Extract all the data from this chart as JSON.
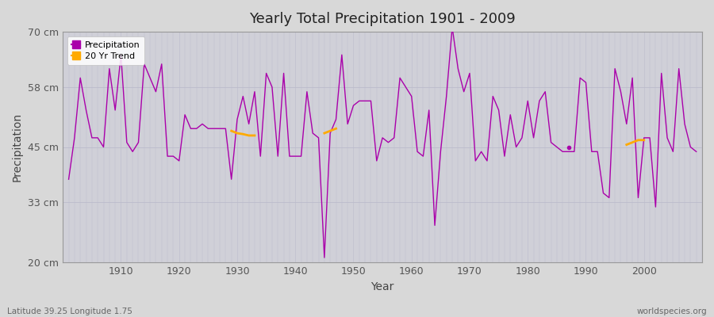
{
  "title": "Yearly Total Precipitation 1901 - 2009",
  "xlabel": "Year",
  "ylabel": "Precipitation",
  "subtitle_left": "Latitude 39.25 Longitude 1.75",
  "subtitle_right": "worldspecies.org",
  "ylim": [
    20,
    70
  ],
  "yticks": [
    20,
    33,
    45,
    58,
    70
  ],
  "ytick_labels": [
    "20 cm",
    "33 cm",
    "45 cm",
    "58 cm",
    "70 cm"
  ],
  "xlim": [
    1900,
    2010
  ],
  "xticks": [
    1910,
    1920,
    1930,
    1940,
    1950,
    1960,
    1970,
    1980,
    1990,
    2000
  ],
  "precip_color": "#aa00aa",
  "trend_color": "#ffaa00",
  "fig_bg_color": "#d8d8d8",
  "plot_bg_color": "#d0d0d8",
  "grid_color": "#bbbbcc",
  "years": [
    1901,
    1902,
    1903,
    1904,
    1905,
    1906,
    1907,
    1908,
    1909,
    1910,
    1911,
    1912,
    1913,
    1914,
    1915,
    1916,
    1917,
    1918,
    1919,
    1920,
    1921,
    1922,
    1923,
    1924,
    1925,
    1926,
    1927,
    1928,
    1929,
    1930,
    1931,
    1932,
    1933,
    1934,
    1935,
    1936,
    1937,
    1938,
    1939,
    1940,
    1941,
    1942,
    1943,
    1944,
    1945,
    1946,
    1947,
    1948,
    1949,
    1950,
    1951,
    1952,
    1953,
    1954,
    1955,
    1956,
    1957,
    1958,
    1959,
    1960,
    1961,
    1962,
    1963,
    1964,
    1965,
    1966,
    1967,
    1968,
    1969,
    1970,
    1971,
    1972,
    1973,
    1974,
    1975,
    1976,
    1977,
    1978,
    1979,
    1980,
    1981,
    1982,
    1983,
    1984,
    1985,
    1986,
    1987,
    1988,
    1989,
    1990,
    1991,
    1992,
    1993,
    1994,
    1995,
    1996,
    1997,
    1998,
    1999,
    2000,
    2001,
    2002,
    2003,
    2004,
    2005,
    2006,
    2007,
    2008,
    2009
  ],
  "precip": [
    38,
    47,
    60,
    53,
    47,
    47,
    45,
    62,
    53,
    65,
    46,
    44,
    46,
    63,
    60,
    57,
    63,
    43,
    43,
    42,
    52,
    49,
    49,
    50,
    49,
    49,
    49,
    49,
    38,
    51,
    56,
    50,
    57,
    43,
    61,
    58,
    43,
    61,
    43,
    43,
    43,
    57,
    48,
    47,
    21,
    48,
    51,
    65,
    50,
    54,
    55,
    55,
    55,
    42,
    47,
    46,
    47,
    60,
    58,
    56,
    44,
    43,
    53,
    28,
    44,
    56,
    71,
    62,
    57,
    61,
    42,
    44,
    42,
    56,
    53,
    43,
    52,
    45,
    47,
    55,
    47,
    55,
    57,
    46,
    45,
    44,
    44,
    44,
    60,
    59,
    44,
    44,
    35,
    34,
    62,
    57,
    50,
    60,
    34,
    47,
    47,
    32,
    61,
    47,
    44,
    62,
    50,
    45,
    44
  ],
  "trend_seg1_years": [
    1929,
    1930,
    1931,
    1932,
    1933
  ],
  "trend_seg1_vals": [
    48.5,
    48.0,
    47.8,
    47.5,
    47.5
  ],
  "trend_seg2_years": [
    1945,
    1946,
    1947
  ],
  "trend_seg2_vals": [
    48.0,
    48.5,
    49.0
  ],
  "trend_seg3_years": [
    1997,
    1998,
    1999,
    2000
  ],
  "trend_seg3_vals": [
    45.5,
    46.0,
    46.5,
    46.5
  ],
  "dot_year": 1987,
  "dot_val": 45.0
}
